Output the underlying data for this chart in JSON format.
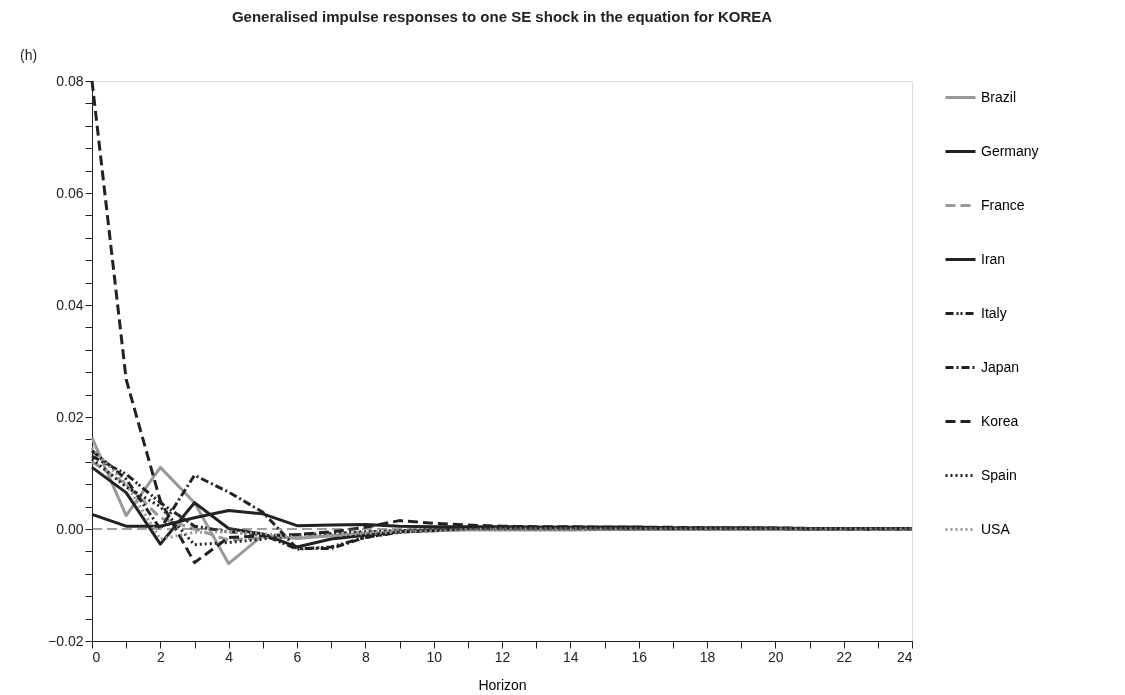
{
  "chart_data": {
    "type": "line",
    "title": "Generalised impulse responses to one SE shock in the equation for KOREA",
    "xlabel": "Horizon",
    "annotations": [
      "(h)"
    ],
    "x": [
      0,
      1,
      2,
      3,
      4,
      5,
      6,
      7,
      8,
      9,
      10,
      11,
      12,
      13,
      14,
      15,
      16,
      17,
      18,
      19,
      20,
      21,
      22,
      23,
      24
    ],
    "xlim": [
      0,
      24
    ],
    "xticks": [
      0,
      {
        "value": 1,
        "label": null
      },
      2,
      {
        "value": 3,
        "label": null
      },
      4,
      {
        "value": 5,
        "label": null
      },
      6,
      {
        "value": 7,
        "label": null
      },
      8,
      {
        "value": 9,
        "label": null
      },
      10,
      {
        "value": 11,
        "label": null
      },
      12,
      {
        "value": 13,
        "label": null
      },
      14,
      {
        "value": 15,
        "label": null
      },
      16,
      {
        "value": 17,
        "label": null
      },
      18,
      {
        "value": 19,
        "label": null
      },
      20,
      {
        "value": 21,
        "label": null
      },
      22,
      {
        "value": 23,
        "label": null
      },
      24
    ],
    "ylim": [
      -0.02,
      0.08
    ],
    "yticks": [
      {
        "value": -0.02,
        "label": "−0.02"
      },
      {
        "value": -0.016,
        "label": null
      },
      {
        "value": -0.012,
        "label": null
      },
      {
        "value": -0.008,
        "label": null
      },
      {
        "value": -0.004,
        "label": null
      },
      {
        "value": 0,
        "label": "0.00"
      },
      {
        "value": 0.004,
        "label": null
      },
      {
        "value": 0.008,
        "label": null
      },
      {
        "value": 0.012,
        "label": null
      },
      {
        "value": 0.016,
        "label": null
      },
      {
        "value": 0.02,
        "label": "0.02"
      },
      {
        "value": 0.024,
        "label": null
      },
      {
        "value": 0.028,
        "label": null
      },
      {
        "value": 0.032,
        "label": null
      },
      {
        "value": 0.036,
        "label": null
      },
      {
        "value": 0.04,
        "label": "0.04"
      },
      {
        "value": 0.044,
        "label": null
      },
      {
        "value": 0.048,
        "label": null
      },
      {
        "value": 0.052,
        "label": null
      },
      {
        "value": 0.056,
        "label": null
      },
      {
        "value": 0.06,
        "label": "0.06"
      },
      {
        "value": 0.064,
        "label": null
      },
      {
        "value": 0.068,
        "label": null
      },
      {
        "value": 0.072,
        "label": null
      },
      {
        "value": 0.076,
        "label": null
      },
      {
        "value": 0.08,
        "label": "0.08"
      }
    ],
    "grid": false,
    "legend": "right",
    "marker": "none",
    "ref_lines": [
      {
        "axis": "y",
        "value": 0,
        "line_style": "dashed",
        "color": "#444444"
      }
    ],
    "series": [
      {
        "name": "Brazil",
        "color": "#999999",
        "line_style": "solid",
        "values": [
          0.0163,
          0.0024,
          0.011,
          0.0047,
          -0.0062,
          -0.0011,
          -0.0017,
          -0.0012,
          -0.0008,
          -0.0005,
          -0.0003,
          -0.0002,
          -0.0002,
          -0.0002,
          -0.0002,
          -0.0001,
          -0.0001,
          -0.0001,
          -0.0001,
          -0.0001,
          -0.0001,
          -0.0001,
          0,
          0,
          0
        ]
      },
      {
        "name": "Germany",
        "color": "#222222",
        "line_style": "solid",
        "values": [
          0.011,
          0.0065,
          -0.0027,
          0.0047,
          0.0001,
          -0.0009,
          -0.0032,
          -0.0018,
          -0.0011,
          -0.0005,
          -0.0002,
          0.0001,
          0.0003,
          0.0003,
          0.0003,
          0.0003,
          0.0003,
          0.0002,
          0.0002,
          0.0002,
          0.0001,
          0.0001,
          0.0001,
          0.0001,
          0.0001
        ]
      },
      {
        "name": "France",
        "color": "#999999",
        "line_style": "dashed",
        "values": [
          0.012,
          0.008,
          0.002,
          0.0,
          -0.002,
          -0.0015,
          -0.0015,
          -0.001,
          -0.0005,
          -0.0003,
          -0.0001,
          0,
          0,
          0,
          0,
          0,
          0,
          0,
          0,
          0,
          0,
          0,
          0,
          0,
          0
        ]
      },
      {
        "name": "Iran",
        "color": "#222222",
        "line_style": "solid",
        "values": [
          0.0026,
          0.0005,
          0.0005,
          0.002,
          0.0033,
          0.0027,
          0.0006,
          0.0007,
          0.0008,
          0.0005,
          0.0004,
          0.0004,
          0.0004,
          0.0003,
          0.0003,
          0.0003,
          0.0003,
          0.0002,
          0.0002,
          0.0002,
          0.0002,
          0.0001,
          0.0001,
          0.0001,
          0.0001
        ]
      },
      {
        "name": "Italy",
        "color": "#222222",
        "line_style": "dashdotdot",
        "values": [
          0.013,
          0.0098,
          0.0047,
          0.0005,
          -0.0005,
          -0.001,
          -0.0036,
          -0.0032,
          -0.0015,
          -0.0006,
          -0.0002,
          0.0001,
          0.0002,
          0.0002,
          0.0002,
          0.0002,
          0.0001,
          0.0001,
          0.0001,
          0.0001,
          0.0001,
          0,
          0,
          0,
          0
        ]
      },
      {
        "name": "Japan",
        "color": "#222222",
        "line_style": "dashdot",
        "values": [
          0.014,
          0.0089,
          0.0,
          0.0096,
          0.0066,
          0.003,
          -0.0035,
          -0.0035,
          -0.0015,
          -0.0005,
          -0.0003,
          0.0001,
          0.0002,
          0.0002,
          0.0002,
          0.0002,
          0.0001,
          0.0001,
          0.0001,
          0.0001,
          0.0001,
          0,
          0,
          0,
          0
        ]
      },
      {
        "name": "Korea",
        "color": "#222222",
        "line_style": "dashed",
        "values": [
          0.08,
          0.0267,
          0.005,
          -0.006,
          -0.0015,
          -0.0012,
          -0.001,
          -0.0005,
          0.0003,
          0.0015,
          0.001,
          0.0007,
          0.0005,
          0.0004,
          0.0004,
          0.0003,
          0.0003,
          0.0003,
          0.0002,
          0.0002,
          0.0002,
          0.0001,
          0.0001,
          0.0001,
          0.0001
        ]
      },
      {
        "name": "Spain",
        "color": "#222222",
        "line_style": "dotted",
        "values": [
          0.0125,
          0.0075,
          0.004,
          -0.0028,
          -0.0024,
          -0.0018,
          -0.001,
          -0.0008,
          -0.0005,
          -0.0003,
          -0.0001,
          0,
          0,
          0,
          0,
          0,
          0,
          0,
          0,
          0,
          0,
          0,
          0,
          0,
          0
        ]
      },
      {
        "name": "USA",
        "color": "#999999",
        "line_style": "dotted",
        "values": [
          0.0145,
          0.008,
          -0.0018,
          -0.0006,
          -0.0005,
          -0.0008,
          -0.0015,
          -0.0012,
          -0.0008,
          -0.0005,
          -0.0003,
          -0.0001,
          0,
          0,
          0,
          0,
          0,
          0,
          0,
          0,
          0,
          0,
          0,
          0,
          0
        ]
      }
    ]
  }
}
